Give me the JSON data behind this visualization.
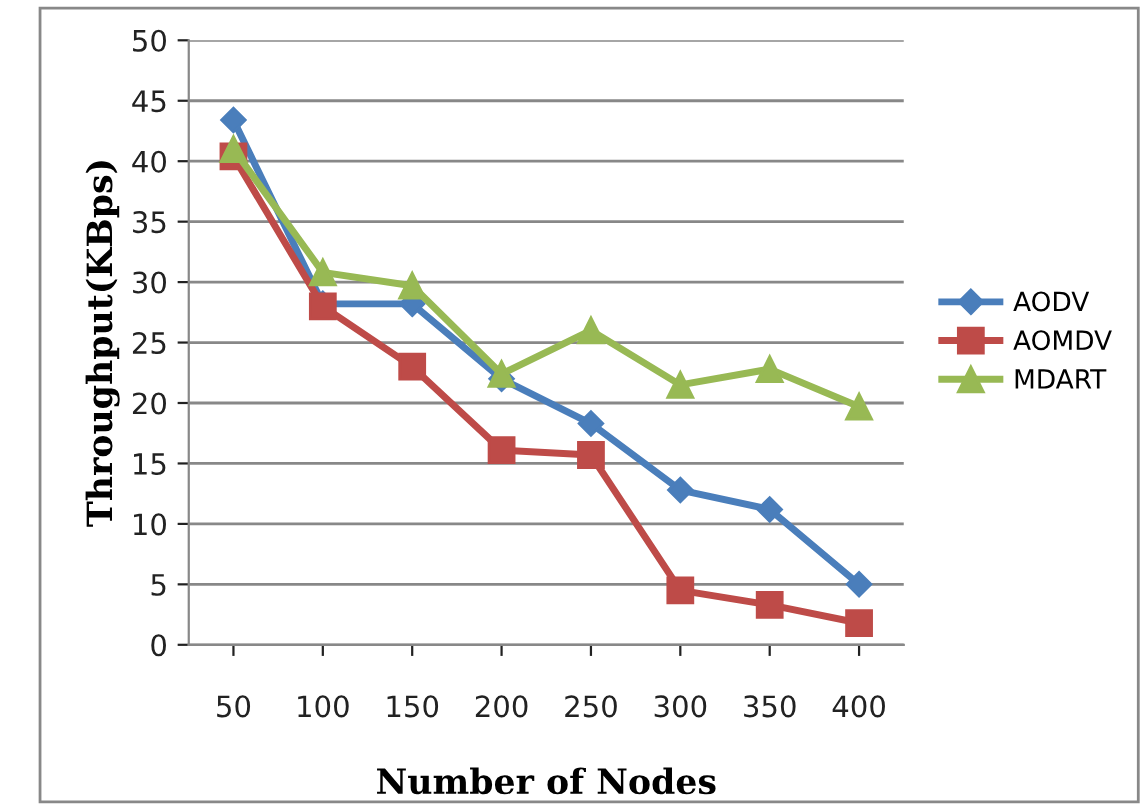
{
  "chart_data": {
    "type": "line",
    "xlabel": "Number of Nodes",
    "ylabel": "Throughput(KBps)",
    "categories": [
      "50",
      "100",
      "150",
      "200",
      "250",
      "300",
      "350",
      "400"
    ],
    "series": [
      {
        "name": "AODV",
        "color": "#4a7ebb",
        "marker": "diamond",
        "values": [
          43.4,
          28.2,
          28.2,
          22,
          18.3,
          12.8,
          11.2,
          5
        ]
      },
      {
        "name": "AOMDV",
        "color": "#be4b48",
        "marker": "square",
        "values": [
          40.4,
          28,
          23,
          16.1,
          15.7,
          4.5,
          3.3,
          1.8
        ]
      },
      {
        "name": "MDART",
        "color": "#98b954",
        "marker": "triangle",
        "values": [
          41,
          30.8,
          29.7,
          22.4,
          26,
          21.5,
          22.8,
          19.7
        ]
      }
    ],
    "ylim": [
      0,
      50
    ],
    "yticks": [
      0,
      5,
      10,
      15,
      20,
      25,
      30,
      35,
      40,
      45,
      50
    ],
    "grid": "y",
    "legend": "right"
  }
}
